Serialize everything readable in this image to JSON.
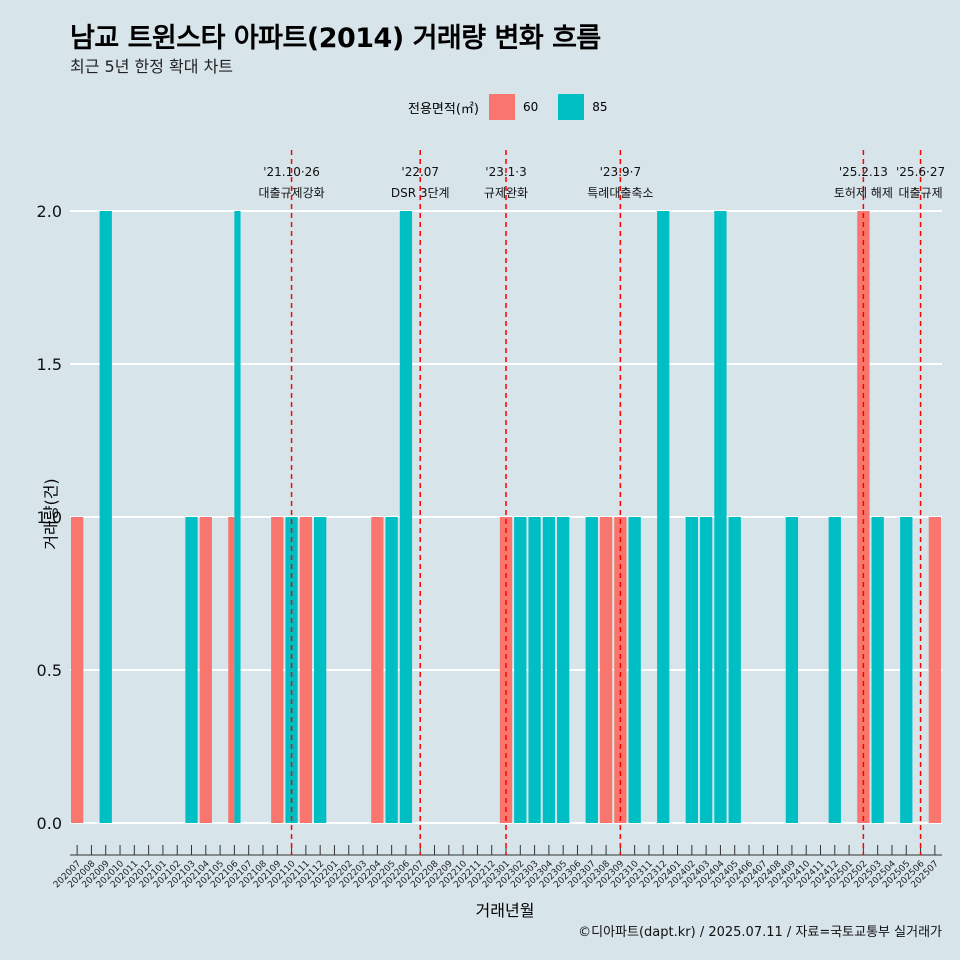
{
  "chart_data": {
    "type": "bar",
    "title": "남교 트윈스타 아파트(2014) 거래량 변화 흐름",
    "subtitle": "최근 5년 한정 확대 차트",
    "xlabel": "거래년월",
    "ylabel": "거래량(건)",
    "ylim": [
      0,
      2
    ],
    "yticks": [
      "0.0",
      "0.5",
      "1.0",
      "1.5",
      "2.0"
    ],
    "caption": "©디아파트(dapt.kr) / 2025.07.11 / 자료=국토교통부 실거래가",
    "legend": {
      "title": "전용면적(㎡)",
      "position": "top",
      "items": [
        {
          "label": "60",
          "color": "#f8766d"
        },
        {
          "label": "85",
          "color": "#00bfc4"
        }
      ]
    },
    "categories": [
      "202007",
      "202008",
      "202009",
      "202010",
      "202011",
      "202012",
      "202101",
      "202102",
      "202103",
      "202104",
      "202105",
      "202106",
      "202107",
      "202108",
      "202109",
      "202110",
      "202111",
      "202112",
      "202201",
      "202202",
      "202203",
      "202204",
      "202205",
      "202206",
      "202207",
      "202208",
      "202209",
      "202210",
      "202211",
      "202212",
      "202301",
      "202302",
      "202303",
      "202304",
      "202305",
      "202306",
      "202307",
      "202308",
      "202309",
      "202310",
      "202311",
      "202312",
      "202401",
      "202402",
      "202403",
      "202404",
      "202405",
      "202406",
      "202407",
      "202408",
      "202409",
      "202410",
      "202411",
      "202412",
      "202501",
      "202502",
      "202503",
      "202504",
      "202505",
      "202506",
      "202507"
    ],
    "series": [
      {
        "name": "60",
        "color": "#f8766d",
        "values": [
          1,
          0,
          0,
          0,
          0,
          0,
          0,
          0,
          0,
          1,
          0,
          1,
          0,
          0,
          1,
          0,
          1,
          0,
          0,
          0,
          0,
          1,
          0,
          0,
          0,
          0,
          0,
          0,
          0,
          0,
          1,
          0,
          0,
          0,
          0,
          0,
          0,
          1,
          1,
          0,
          0,
          0,
          0,
          0,
          0,
          0,
          0,
          0,
          0,
          0,
          0,
          0,
          0,
          0,
          0,
          2,
          0,
          0,
          0,
          0,
          1
        ]
      },
      {
        "name": "85",
        "color": "#00bfc4",
        "values": [
          0,
          0,
          2,
          0,
          0,
          0,
          0,
          0,
          1,
          0,
          0,
          2,
          0,
          0,
          0,
          1,
          0,
          1,
          0,
          0,
          0,
          0,
          1,
          2,
          0,
          0,
          0,
          0,
          0,
          0,
          0,
          1,
          1,
          1,
          1,
          0,
          1,
          0,
          0,
          1,
          0,
          2,
          0,
          1,
          1,
          2,
          1,
          0,
          0,
          0,
          1,
          0,
          0,
          1,
          0,
          0,
          1,
          0,
          1,
          0,
          0
        ]
      }
    ],
    "annotations": [
      {
        "at": "202110",
        "date": "'21.10·26",
        "label": "대출규제강화"
      },
      {
        "at": "202207",
        "date": "'22.07",
        "label": "DSR 3단계"
      },
      {
        "at": "202301",
        "date": "'23.1·3",
        "label": "규제완화"
      },
      {
        "at": "202309",
        "date": "'23.9·7",
        "label": "특례대출축소"
      },
      {
        "at": "202502",
        "date": "'25.2.13",
        "label": "토허제 해제"
      },
      {
        "at": "202506",
        "date": "'25.6·27",
        "label": "대출규제"
      }
    ]
  },
  "colors": {
    "background": "#d7e4ea",
    "gridline": "#ffffff",
    "event_line": "#ff0000"
  }
}
